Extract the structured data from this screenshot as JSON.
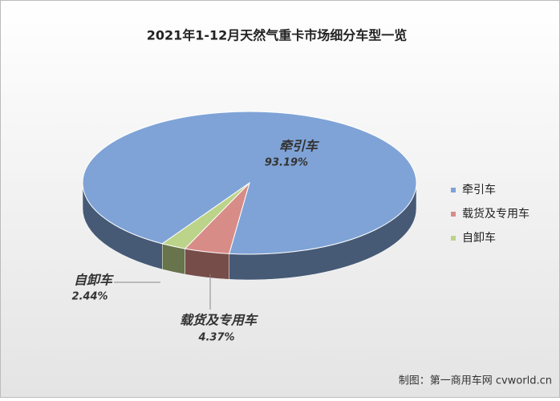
{
  "chart_data": {
    "type": "pie",
    "title": "2021年1-12月天然气重卡市场细分车型一览",
    "categories": [
      "牵引车",
      "载货及专用车",
      "自卸车"
    ],
    "values": [
      93.19,
      4.37,
      2.44
    ],
    "value_labels": [
      "93.19%",
      "4.37%",
      "2.44%"
    ],
    "colors": [
      "#7fa3d6",
      "#d88c87",
      "#bcd38a"
    ],
    "legend": "right",
    "source": "制图：第一商用车网 cvworld.cn"
  }
}
